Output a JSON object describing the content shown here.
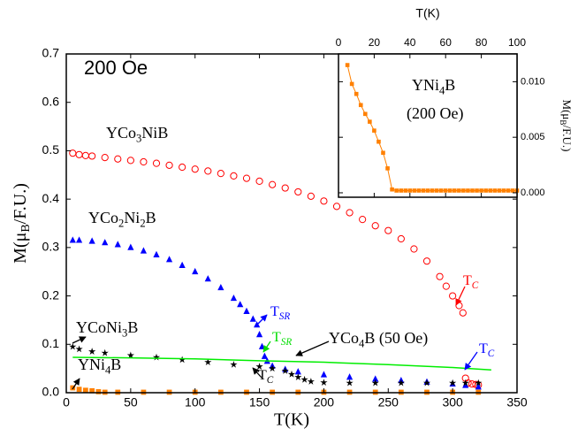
{
  "chart_data": [
    {
      "type": "scatter",
      "xlabel": "T(K)",
      "ylabel": [
        "M(μ",
        "B",
        "/F.U.)"
      ],
      "xlim": [
        0,
        350
      ],
      "ylim": [
        0,
        0.7
      ],
      "xticks": [
        0,
        50,
        100,
        150,
        200,
        250,
        300,
        350
      ],
      "yticks": [
        {
          "value": 0,
          "label": "0.0"
        },
        0.1,
        0.2,
        0.3,
        0.4,
        0.5,
        0.6,
        0.7
      ],
      "annotations": [
        {
          "parts": [
            "200 Oe"
          ],
          "color": "#000000"
        },
        {
          "parts": [
            "YCo",
            "3",
            "NiB"
          ],
          "color": "#000000"
        },
        {
          "parts": [
            "YCo",
            "2",
            "Ni",
            "2",
            "B"
          ],
          "color": "#000000"
        },
        {
          "parts": [
            "YCoNi",
            "3",
            "B"
          ],
          "color": "#000000"
        },
        {
          "parts": [
            "YNi",
            "4",
            "B"
          ],
          "color": "#000000"
        },
        {
          "parts": [
            "YCo",
            "4",
            "B (50 Oe)"
          ],
          "color": "#000000"
        },
        {
          "parts": [
            "T",
            "SR"
          ],
          "color": "#0000ff"
        },
        {
          "parts": [
            "T",
            "SR"
          ],
          "color": "#00dd00"
        },
        {
          "parts": [
            "T",
            "C"
          ],
          "color": "#000000"
        },
        {
          "parts": [
            "T",
            "C"
          ],
          "color": "#ff0000"
        },
        {
          "parts": [
            "T",
            "C"
          ],
          "color": "#0000ff"
        }
      ],
      "series": [
        {
          "marker": "circle-open",
          "color": "#ff0000",
          "x": [
            5,
            10,
            15,
            20,
            30,
            40,
            50,
            60,
            70,
            80,
            90,
            100,
            110,
            120,
            130,
            140,
            150,
            160,
            170,
            180,
            190,
            200,
            210,
            220,
            230,
            240,
            250,
            260,
            270,
            280,
            290,
            295,
            300,
            305,
            308,
            310,
            312,
            315,
            318,
            320
          ],
          "values": [
            0.495,
            0.492,
            0.49,
            0.489,
            0.486,
            0.483,
            0.48,
            0.477,
            0.474,
            0.47,
            0.466,
            0.462,
            0.458,
            0.453,
            0.448,
            0.443,
            0.437,
            0.43,
            0.423,
            0.415,
            0.406,
            0.396,
            0.385,
            0.372,
            0.358,
            0.345,
            0.335,
            0.318,
            0.297,
            0.272,
            0.24,
            0.22,
            0.2,
            0.18,
            0.165,
            0.03,
            0.02,
            0.018,
            0.017,
            0.016
          ]
        },
        {
          "marker": "triangle",
          "color": "#0000ff",
          "x": [
            5,
            10,
            20,
            30,
            40,
            50,
            60,
            70,
            80,
            90,
            100,
            110,
            120,
            130,
            135,
            140,
            145,
            148,
            150,
            152,
            154,
            156,
            160,
            170,
            180,
            200,
            220,
            240,
            260,
            280,
            300,
            310,
            320
          ],
          "values": [
            0.315,
            0.315,
            0.313,
            0.31,
            0.306,
            0.3,
            0.293,
            0.285,
            0.275,
            0.263,
            0.25,
            0.235,
            0.217,
            0.195,
            0.182,
            0.168,
            0.152,
            0.14,
            0.12,
            0.095,
            0.075,
            0.065,
            0.055,
            0.048,
            0.043,
            0.037,
            0.032,
            0.028,
            0.025,
            0.022,
            0.018,
            0.015,
            0.012
          ]
        },
        {
          "marker": "star",
          "color": "#000000",
          "x": [
            5,
            10,
            20,
            30,
            50,
            70,
            90,
            110,
            130,
            150,
            160,
            170,
            175,
            180,
            185,
            190,
            200,
            220,
            240,
            260,
            280,
            300,
            310,
            320
          ],
          "values": [
            0.095,
            0.09,
            0.085,
            0.082,
            0.077,
            0.073,
            0.068,
            0.063,
            0.058,
            0.054,
            0.05,
            0.045,
            0.038,
            0.032,
            0.027,
            0.023,
            0.021,
            0.02,
            0.02,
            0.02,
            0.02,
            0.02,
            0.02,
            0.02
          ]
        },
        {
          "marker": "line",
          "color": "#00ee00",
          "x": [
            5,
            50,
            100,
            150,
            200,
            250,
            300,
            330
          ],
          "values": [
            0.073,
            0.072,
            0.07,
            0.066,
            0.063,
            0.058,
            0.052,
            0.047
          ]
        },
        {
          "marker": "square",
          "color": "#ff8000",
          "x": [
            5,
            10,
            15,
            20,
            25,
            30,
            40,
            60,
            80,
            100,
            120,
            140,
            160,
            180,
            200,
            220,
            240,
            260,
            280,
            300,
            320
          ],
          "values": [
            0.01,
            0.007,
            0.005,
            0.004,
            0.002,
            0.001,
            0.001,
            0.001,
            0.001,
            0.001,
            0.001,
            0.001,
            0.001,
            0.001,
            0.001,
            0.001,
            0.001,
            0.001,
            0.001,
            0.001,
            0.001
          ]
        }
      ]
    },
    {
      "type": "line",
      "xlabel": "T(K)",
      "ylabel": [
        "M(μ",
        "B",
        "/F.U.)"
      ],
      "xlim": [
        0,
        100
      ],
      "ylim": [
        -0.0004,
        0.0125
      ],
      "xticks": [
        0,
        20,
        40,
        60,
        80,
        100
      ],
      "yticks": [
        {
          "value": 0,
          "label": "0.000"
        },
        {
          "value": 0.005,
          "label": "0.005"
        },
        {
          "value": 0.01,
          "label": "0.010"
        }
      ],
      "annotations": [
        {
          "parts": [
            "YNi",
            "4",
            "B"
          ],
          "color": "#000000"
        },
        {
          "parts": [
            "(200 Oe)"
          ],
          "color": "#000000"
        }
      ],
      "series": [
        {
          "marker": "square",
          "color": "#ff8000",
          "x": [
            5,
            7.5,
            10,
            12.5,
            15,
            17.5,
            20,
            22.5,
            25,
            27.5,
            30,
            32.5,
            35,
            37.5,
            40,
            42.5,
            45,
            47.5,
            50,
            52.5,
            55,
            57.5,
            60,
            62.5,
            65,
            67.5,
            70,
            72.5,
            75,
            77.5,
            80,
            82.5,
            85,
            87.5,
            90,
            92.5,
            95,
            97.5,
            100
          ],
          "values": [
            0.0115,
            0.0098,
            0.0089,
            0.0079,
            0.0071,
            0.0064,
            0.0056,
            0.0046,
            0.0036,
            0.0022,
            0.0003,
            0.0002,
            0.0002,
            0.0002,
            0.0002,
            0.0002,
            0.0002,
            0.0002,
            0.0002,
            0.0002,
            0.0002,
            0.0002,
            0.0002,
            0.0002,
            0.0002,
            0.0002,
            0.0002,
            0.0002,
            0.0002,
            0.0002,
            0.0002,
            0.0002,
            0.0002,
            0.0002,
            0.0002,
            0.0002,
            0.0002,
            0.0002,
            0.0002
          ]
        }
      ]
    }
  ]
}
